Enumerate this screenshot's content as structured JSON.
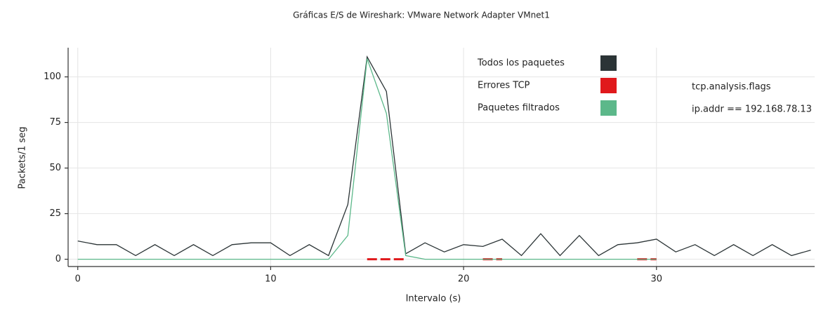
{
  "chart_data": {
    "type": "line",
    "title": "Gráficas E/S de Wireshark: VMware Network Adapter VMnet1",
    "x_label": "Intervalo (s)",
    "y_label": "Packets/1 seg",
    "x": [
      0,
      1,
      2,
      3,
      4,
      5,
      6,
      7,
      8,
      9,
      10,
      11,
      12,
      13,
      14,
      15,
      16,
      17,
      18,
      19,
      20,
      21,
      22,
      23,
      24,
      25,
      26,
      27,
      28,
      29,
      30,
      31,
      32,
      33,
      34,
      35,
      36,
      37,
      38
    ],
    "series": [
      {
        "name": "Todos los paquetes",
        "color": "#2b3436",
        "values": [
          10,
          8,
          8,
          2,
          8,
          2,
          8,
          2,
          8,
          9,
          9,
          2,
          8,
          2,
          30,
          111,
          92,
          3,
          9,
          4,
          8,
          7,
          11,
          2,
          14,
          2,
          13,
          2,
          8,
          9,
          11,
          4,
          8,
          2,
          8,
          2,
          8,
          2,
          5
        ]
      },
      {
        "name": "Errores TCP",
        "color": "#e0191c",
        "dashed": true,
        "values": [
          null,
          null,
          null,
          null,
          null,
          null,
          null,
          null,
          null,
          null,
          null,
          null,
          null,
          null,
          null,
          0,
          0,
          0,
          null,
          null,
          null,
          0,
          0,
          null,
          null,
          null,
          null,
          null,
          null,
          0,
          0,
          null,
          null,
          null,
          null,
          null,
          null,
          null,
          null
        ]
      },
      {
        "name": "Paquetes filtrados",
        "color": "#5cb88a",
        "values": [
          0,
          0,
          0,
          0,
          0,
          0,
          0,
          0,
          0,
          0,
          0,
          0,
          0,
          0,
          13,
          110,
          80,
          2,
          0,
          0,
          0,
          0,
          0,
          0,
          0,
          0,
          0,
          0,
          0,
          0,
          0,
          null,
          null,
          null,
          null,
          null,
          null,
          null,
          null
        ]
      }
    ],
    "annotations": [
      "tcp.analysis.flags",
      "ip.addr == 192.168.78.13"
    ],
    "xlim": [
      -0.5,
      38.2
    ],
    "ylim": [
      -4,
      116
    ],
    "xticks": [
      0,
      10,
      20,
      30
    ],
    "yticks": [
      0,
      25,
      50,
      75,
      100
    ],
    "grid": true,
    "legend": "top-right"
  }
}
